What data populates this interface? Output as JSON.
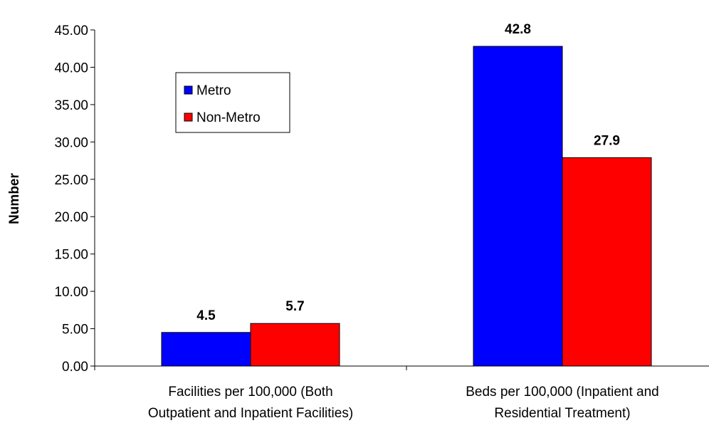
{
  "chart_data": {
    "type": "bar",
    "categories": [
      [
        "Facilities per 100,000 (Both",
        "Outpatient and Inpatient Facilities)"
      ],
      [
        "Beds per 100,000 (Inpatient and",
        "Residential Treatment)"
      ]
    ],
    "series": [
      {
        "name": "Metro",
        "values": [
          4.5,
          42.8
        ],
        "color": "#0000FF"
      },
      {
        "name": "Non-Metro",
        "values": [
          5.7,
          27.9
        ],
        "color": "#FF0000"
      }
    ],
    "data_labels": [
      [
        "4.5",
        "42.8"
      ],
      [
        "5.7",
        "27.9"
      ]
    ],
    "xlabel": "",
    "ylabel": "Number",
    "ylim": [
      0,
      45
    ],
    "yticks": [
      "0.00",
      "5.00",
      "10.00",
      "15.00",
      "20.00",
      "25.00",
      "30.00",
      "35.00",
      "40.00",
      "45.00"
    ],
    "grid": false,
    "legend_position": "upper-left inside plot"
  }
}
